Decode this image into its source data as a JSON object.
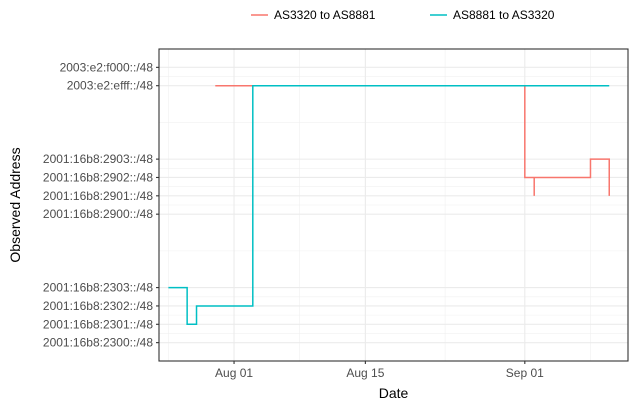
{
  "chart_data": {
    "type": "line",
    "line_shape": "step",
    "xlabel": "Date",
    "ylabel": "Observed Address",
    "x_axis": {
      "type": "date",
      "range": [
        "2019-07-24",
        "2019-09-12"
      ],
      "ticks": [
        {
          "value": "2019-08-01",
          "label": "Aug 01"
        },
        {
          "value": "2019-08-15",
          "label": "Aug 15"
        },
        {
          "value": "2019-09-01",
          "label": "Sep 01"
        }
      ]
    },
    "y_axis": {
      "type": "categorical-address",
      "levels": [
        "2001:16b8:2300::/48",
        "2001:16b8:2301::/48",
        "2001:16b8:2302::/48",
        "2001:16b8:2303::/48",
        "2001:16b8:2900::/48",
        "2001:16b8:2901::/48",
        "2001:16b8:2902::/48",
        "2001:16b8:2903::/48",
        "2003:e2:efff::/48",
        "2003:e2:f000::/48"
      ],
      "tick_labels": [
        "2001:16b8:2300::/48",
        "2001:16b8:2301::/48",
        "2001:16b8:2302::/48",
        "2001:16b8:2303::/48",
        "2001:16b8:2900::/48",
        "2001:16b8:2901::/48",
        "2001:16b8:2902::/48",
        "2001:16b8:2903::/48",
        "2003:e2:efff::/48",
        "2003:e2:f000::/48"
      ]
    },
    "grid": true,
    "legend_position": "top",
    "series": [
      {
        "name": "AS3320 to AS8881",
        "color": "#F8766D",
        "points": [
          {
            "x": "2019-07-30",
            "y": "2003:e2:efff::/48"
          },
          {
            "x": "2019-08-13",
            "y": "2003:e2:efff::/48"
          },
          {
            "x": "2019-08-14",
            "y": "2003:e2:efff::/48"
          },
          {
            "x": "2019-09-01",
            "y": "2003:e2:efff::/48"
          },
          {
            "x": "2019-09-01",
            "y": "2001:16b8:2902::/48"
          },
          {
            "x": "2019-09-02",
            "y": "2001:16b8:2901::/48"
          },
          {
            "x": "2019-09-02",
            "y": "2001:16b8:2902::/48"
          },
          {
            "x": "2019-09-04",
            "y": "2001:16b8:2902::/48"
          },
          {
            "x": "2019-09-06",
            "y": "2001:16b8:2902::/48"
          },
          {
            "x": "2019-09-08",
            "y": "2001:16b8:2903::/48"
          },
          {
            "x": "2019-09-10",
            "y": "2001:16b8:2901::/48"
          }
        ]
      },
      {
        "name": "AS8881 to AS3320",
        "color": "#00BFC4",
        "points": [
          {
            "x": "2019-07-25",
            "y": "2001:16b8:2303::/48"
          },
          {
            "x": "2019-07-27",
            "y": "2001:16b8:2302::/48"
          },
          {
            "x": "2019-07-27",
            "y": "2001:16b8:2301::/48"
          },
          {
            "x": "2019-07-28",
            "y": "2001:16b8:2302::/48"
          },
          {
            "x": "2019-08-03",
            "y": "2003:e2:efff::/48"
          },
          {
            "x": "2019-08-13",
            "y": "2003:e2:efff::/48"
          },
          {
            "x": "2019-08-14",
            "y": "2003:e2:efff::/48"
          },
          {
            "x": "2019-09-01",
            "y": "2003:e2:efff::/48"
          },
          {
            "x": "2019-09-10",
            "y": "2003:e2:efff::/48"
          }
        ]
      }
    ]
  }
}
